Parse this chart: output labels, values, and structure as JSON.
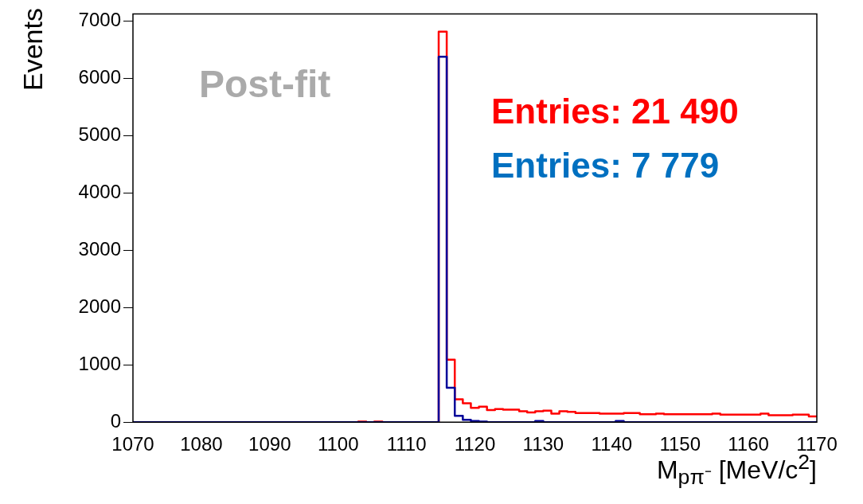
{
  "chart_data": {
    "type": "histogram",
    "xlabel": "M$_{pπ⁻}$ [MeV/c$^{2}$]",
    "ylabel": "Events",
    "bins": [
      1070,
      1071.176,
      1072.353,
      1073.529,
      1074.706,
      1075.882,
      1077.059,
      1078.235,
      1079.412,
      1080.588,
      1081.765,
      1082.941,
      1084.118,
      1085.294,
      1086.471,
      1087.647,
      1088.824,
      1090,
      1091.176,
      1092.353,
      1093.529,
      1094.706,
      1095.882,
      1097.059,
      1098.235,
      1099.412,
      1100.588,
      1101.765,
      1102.941,
      1104.118,
      1105.294,
      1106.471,
      1107.647,
      1108.824,
      1110,
      1111.176,
      1112.353,
      1113.529,
      1114.706,
      1115.882,
      1117.059,
      1118.235,
      1119.412,
      1120.588,
      1121.765,
      1122.941,
      1124.118,
      1125.294,
      1126.471,
      1127.647,
      1128.824,
      1130,
      1131.176,
      1132.353,
      1133.529,
      1134.706,
      1135.882,
      1137.059,
      1138.235,
      1139.412,
      1140.588,
      1141.765,
      1142.941,
      1144.118,
      1145.294,
      1146.471,
      1147.647,
      1148.824,
      1150,
      1151.176,
      1152.353,
      1153.529,
      1154.706,
      1155.882,
      1157.059,
      1158.235,
      1159.412,
      1160.588,
      1161.765,
      1162.941,
      1164.118,
      1165.294,
      1166.471,
      1167.647,
      1168.824,
      1170
    ],
    "series": [
      {
        "color": "#ff0000",
        "values": [
          0,
          0,
          0,
          0,
          0,
          0,
          0,
          0,
          0,
          0,
          0,
          0,
          0,
          0,
          0,
          0,
          0,
          0,
          0,
          0,
          0,
          0,
          0,
          0,
          0,
          0,
          0,
          0,
          10,
          0,
          10,
          0,
          0,
          0,
          0,
          0,
          0,
          0,
          6820,
          1090,
          400,
          330,
          250,
          270,
          210,
          230,
          220,
          220,
          190,
          170,
          190,
          200,
          150,
          190,
          180,
          160,
          160,
          160,
          150,
          150,
          150,
          160,
          160,
          140,
          140,
          150,
          140,
          140,
          140,
          140,
          140,
          140,
          150,
          130,
          130,
          130,
          130,
          130,
          150,
          120,
          120,
          120,
          130,
          130,
          100
        ]
      },
      {
        "color": "#000099",
        "values": [
          0,
          0,
          0,
          0,
          0,
          0,
          0,
          0,
          0,
          0,
          0,
          0,
          0,
          0,
          0,
          0,
          0,
          0,
          0,
          0,
          0,
          0,
          0,
          0,
          0,
          0,
          0,
          0,
          0,
          0,
          0,
          0,
          0,
          0,
          0,
          0,
          0,
          0,
          6380,
          600,
          110,
          40,
          20,
          10,
          0,
          0,
          0,
          0,
          0,
          0,
          20,
          0,
          0,
          0,
          0,
          0,
          0,
          0,
          0,
          0,
          20,
          0,
          0,
          0,
          0,
          0,
          0,
          0,
          0,
          0,
          0,
          0,
          0,
          0,
          0,
          0,
          0,
          0,
          0,
          0,
          0,
          0,
          0,
          0,
          0
        ]
      }
    ],
    "annotations": [
      "Post-fit",
      "Entries: 21 490",
      "Entries: 7 779"
    ],
    "xlim": [
      1070,
      1170
    ],
    "xticks": [
      1070,
      1080,
      1090,
      1100,
      1110,
      1120,
      1130,
      1140,
      1150,
      1160,
      1170
    ],
    "ylim": [
      0,
      7130
    ],
    "yticks": [
      0,
      1000,
      2000,
      3000,
      4000,
      5000,
      6000,
      7000
    ],
    "grid": false,
    "legend": false
  }
}
